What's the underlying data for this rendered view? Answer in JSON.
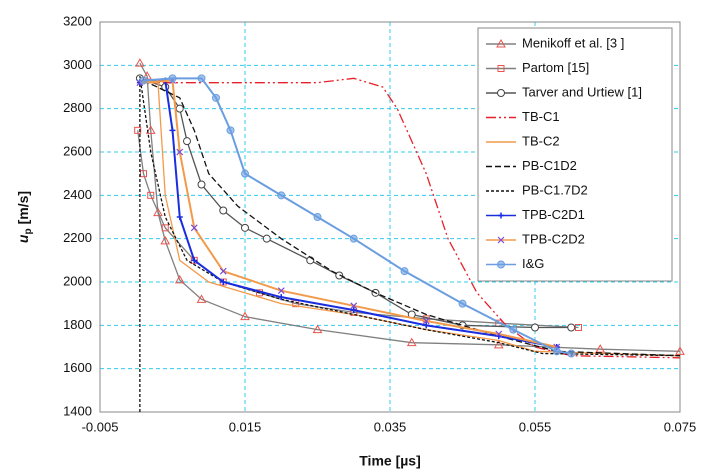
{
  "chart_data": {
    "type": "line",
    "xlabel": "Time [µs]",
    "ylabel": {
      "main": "u",
      "sub": "p",
      "unit": "[m/s]"
    },
    "xlim": [
      -0.005,
      0.075
    ],
    "xticks": [
      -0.005,
      0.015,
      0.035,
      0.055,
      0.075
    ],
    "ylim": [
      1400,
      3200
    ],
    "yticks": [
      1400,
      1600,
      1800,
      2000,
      2200,
      2400,
      2600,
      2800,
      3000,
      3200
    ],
    "grid": true,
    "grid_color": "#33ccee",
    "legend": "upper right",
    "series": [
      {
        "name": "Menikoff et al. [3 ]",
        "color": "#808080",
        "marker": "triangle",
        "marker_color": "#e8544e",
        "dash": "solid",
        "x": [
          0.0005,
          0.0015,
          0.002,
          0.003,
          0.004,
          0.006,
          0.009,
          0.015,
          0.025,
          0.038,
          0.05,
          0.064,
          0.075
        ],
        "values": [
          3010,
          2950,
          2700,
          2320,
          2190,
          2010,
          1920,
          1840,
          1780,
          1720,
          1710,
          1690,
          1680
        ]
      },
      {
        "name": "Partom [15]",
        "color": "#808080",
        "marker": "square",
        "marker_color": "#e8544e",
        "dash": "solid",
        "x": [
          0.0002,
          0.001,
          0.002,
          0.004,
          0.008,
          0.012,
          0.017,
          0.022,
          0.03,
          0.04,
          0.05,
          0.061
        ],
        "values": [
          2700,
          2500,
          2400,
          2250,
          2100,
          2000,
          1950,
          1900,
          1860,
          1830,
          1810,
          1790
        ]
      },
      {
        "name": "Tarver and Urtiew [1]",
        "color": "#555555",
        "marker": "circle",
        "marker_color": "#444444",
        "dash": "solid",
        "x": [
          0.0005,
          0.004,
          0.006,
          0.007,
          0.009,
          0.012,
          0.015,
          0.018,
          0.024,
          0.028,
          0.033,
          0.038,
          0.045,
          0.055,
          0.06
        ],
        "values": [
          2940,
          2900,
          2800,
          2650,
          2450,
          2330,
          2250,
          2200,
          2100,
          2030,
          1950,
          1850,
          1800,
          1790,
          1790
        ]
      },
      {
        "name": "TB-C1",
        "color": "#e8202a",
        "marker": "none",
        "dash": "dashdotdot",
        "x": [
          0.0005,
          0.01,
          0.025,
          0.03,
          0.034,
          0.036,
          0.04,
          0.043,
          0.047,
          0.051,
          0.055,
          0.06,
          0.075
        ],
        "values": [
          2920,
          2920,
          2920,
          2940,
          2900,
          2800,
          2500,
          2200,
          1950,
          1800,
          1700,
          1660,
          1650
        ]
      },
      {
        "name": "TB-C2",
        "color": "#f39a4a",
        "marker": "none",
        "dash": "solid",
        "x": [
          0.0005,
          0.003,
          0.004,
          0.006,
          0.01,
          0.015,
          0.02,
          0.03,
          0.04,
          0.05,
          0.055,
          0.075
        ],
        "values": [
          2920,
          2920,
          2400,
          2100,
          2000,
          1950,
          1900,
          1850,
          1780,
          1730,
          1680,
          1660
        ]
      },
      {
        "name": "PB-C1D2",
        "color": "#111111",
        "marker": "none",
        "dash": "dashed",
        "x": [
          0.001,
          0.006,
          0.008,
          0.01,
          0.014,
          0.02,
          0.027,
          0.033,
          0.04,
          0.05,
          0.058,
          0.075
        ],
        "values": [
          2930,
          2850,
          2700,
          2500,
          2350,
          2200,
          2050,
          1950,
          1850,
          1750,
          1680,
          1660
        ]
      },
      {
        "name": "PB-C1.7D2",
        "color": "#111111",
        "marker": "none",
        "dash": "dotted",
        "x": [
          0.0005,
          0.0005,
          0.002,
          0.004,
          0.007,
          0.012,
          0.02,
          0.03,
          0.04,
          0.05,
          0.056,
          0.075
        ],
        "values": [
          1400,
          2950,
          2600,
          2300,
          2100,
          2000,
          1920,
          1850,
          1780,
          1720,
          1670,
          1660
        ]
      },
      {
        "name": "TPB-C2D1",
        "color": "#1a2ee0",
        "marker": "plus",
        "marker_color": "#1a2ee0",
        "dash": "solid",
        "x": [
          0.0005,
          0.004,
          0.005,
          0.006,
          0.008,
          0.012,
          0.02,
          0.03,
          0.04,
          0.05,
          0.058
        ],
        "values": [
          2920,
          2930,
          2700,
          2300,
          2100,
          2000,
          1930,
          1870,
          1800,
          1750,
          1700
        ]
      },
      {
        "name": "TPB-C2D2",
        "color": "#f39a4a",
        "marker": "x",
        "marker_color": "#7a4ad8",
        "dash": "solid",
        "x": [
          0.0005,
          0.005,
          0.006,
          0.008,
          0.012,
          0.02,
          0.03,
          0.04,
          0.05,
          0.058
        ],
        "values": [
          2920,
          2930,
          2600,
          2250,
          2050,
          1960,
          1890,
          1820,
          1760,
          1700
        ]
      },
      {
        "name": "I&G",
        "color": "#6a9ee0",
        "marker": "circle",
        "marker_color": "#6a9ee0",
        "dash": "solid",
        "x": [
          0.001,
          0.005,
          0.009,
          0.011,
          0.013,
          0.015,
          0.02,
          0.025,
          0.03,
          0.037,
          0.045,
          0.052,
          0.058,
          0.06
        ],
        "values": [
          2930,
          2940,
          2940,
          2850,
          2700,
          2500,
          2400,
          2300,
          2200,
          2050,
          1900,
          1780,
          1680,
          1670
        ]
      }
    ]
  }
}
